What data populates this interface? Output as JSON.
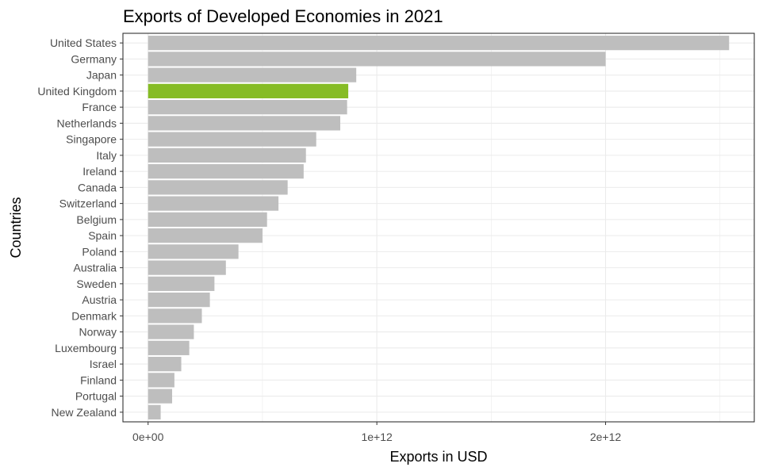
{
  "colors": {
    "bar_default": "#BEBEBE",
    "bar_highlight": "#86BC25",
    "grid": "#EBEBEB",
    "panel_border": "#333333",
    "tick_text": "#4D4D4D",
    "title_text": "#000000"
  },
  "chart_data": {
    "type": "bar",
    "orientation": "horizontal",
    "title": "Exports of Developed Economies in 2021",
    "xlabel": "Exports in USD",
    "ylabel": "Countries",
    "xlim": [
      -110000000000.0,
      2650000000000.0
    ],
    "x_ticks": [
      0,
      1000000000000.0,
      2000000000000.0
    ],
    "x_tick_labels": [
      "0e+00",
      "1e+12",
      "2e+12"
    ],
    "grid": true,
    "legend": "none",
    "highlight": "United Kingdom",
    "categories": [
      "United States",
      "Germany",
      "Japan",
      "United Kingdom",
      "France",
      "Netherlands",
      "Singapore",
      "Italy",
      "Ireland",
      "Canada",
      "Switzerland",
      "Belgium",
      "Spain",
      "Poland",
      "Australia",
      "Sweden",
      "Austria",
      "Denmark",
      "Norway",
      "Luxembourg",
      "Israel",
      "Finland",
      "Portugal",
      "New Zealand"
    ],
    "values": [
      2540000000000.0,
      2000000000000.0,
      910000000000.0,
      875000000000.0,
      870000000000.0,
      840000000000.0,
      735000000000.0,
      690000000000.0,
      680000000000.0,
      610000000000.0,
      570000000000.0,
      520000000000.0,
      500000000000.0,
      395000000000.0,
      340000000000.0,
      290000000000.0,
      270000000000.0,
      235000000000.0,
      200000000000.0,
      180000000000.0,
      145000000000.0,
      115000000000.0,
      105000000000.0,
      55000000000.0
    ]
  }
}
